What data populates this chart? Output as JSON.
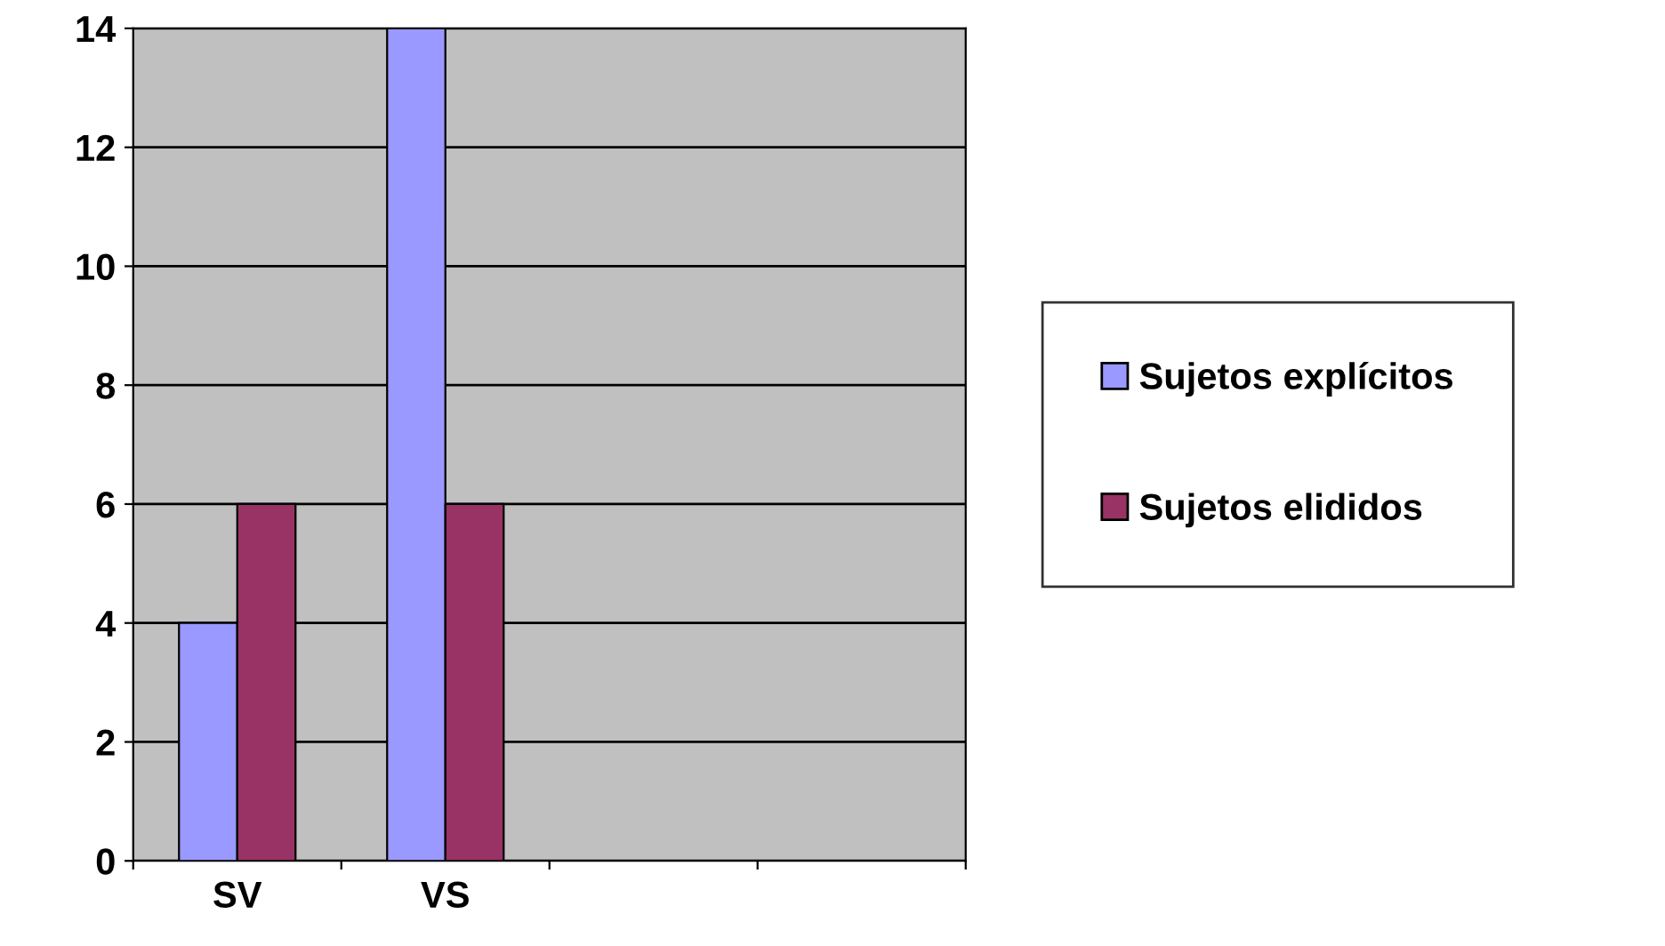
{
  "chart_data": {
    "type": "bar",
    "categories": [
      "SV",
      "VS",
      null,
      null
    ],
    "series": [
      {
        "name": "Sujetos explícitos",
        "color": "#9999ff",
        "values": [
          4,
          14,
          null,
          null
        ]
      },
      {
        "name": "Sujetos elididos",
        "color": "#993366",
        "values": [
          6,
          6,
          null,
          null
        ]
      }
    ],
    "ylim": [
      0,
      14
    ],
    "yticks": [
      0,
      2,
      4,
      6,
      8,
      10,
      12,
      14
    ],
    "grid": "y",
    "legend": "right"
  }
}
